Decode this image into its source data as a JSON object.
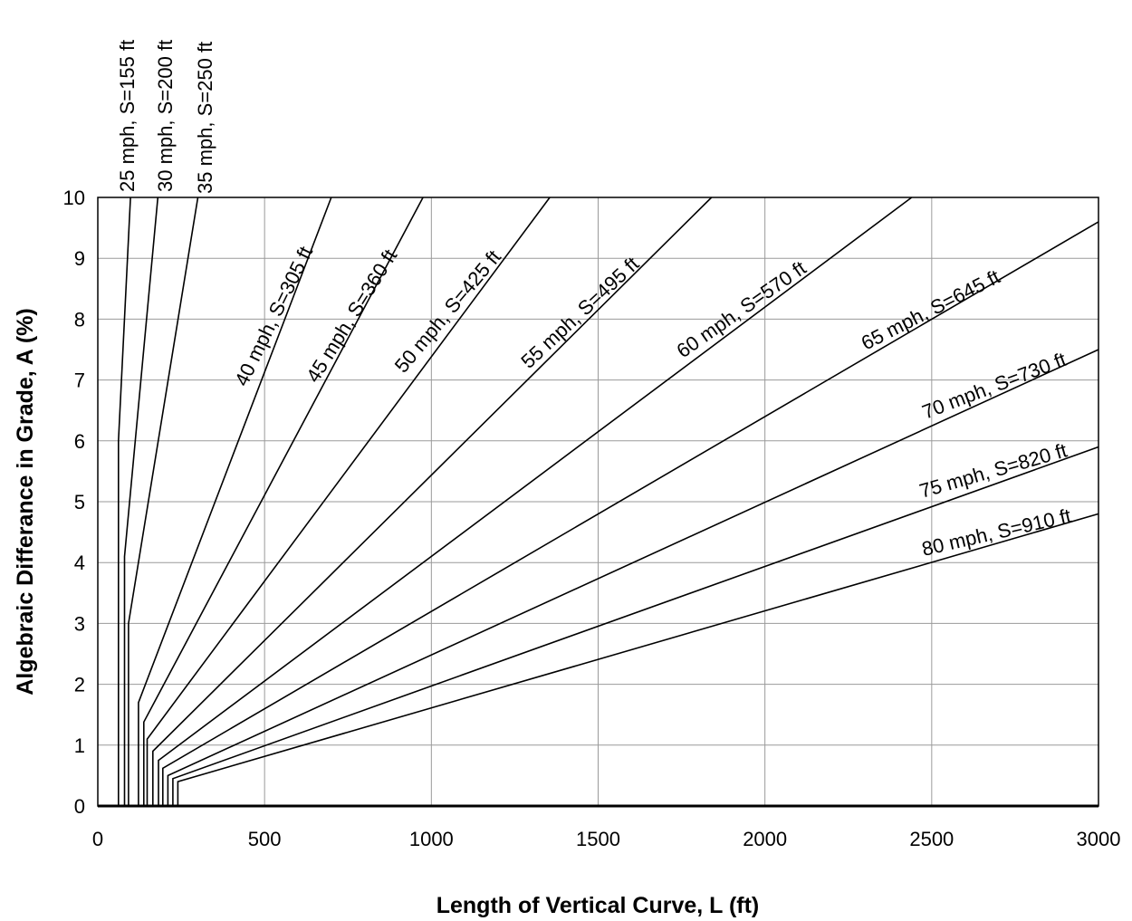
{
  "chart_data": {
    "type": "line",
    "xlabel": "Length of Vertical Curve, L (ft)",
    "ylabel": "Algebraic Differance in Grade, A (%)",
    "xlim": [
      0,
      3000
    ],
    "ylim": [
      0,
      10
    ],
    "x_ticks": [
      "0",
      "500",
      "1000",
      "1500",
      "2000",
      "2500",
      "3000"
    ],
    "y_ticks": [
      "0",
      "1",
      "2",
      "3",
      "4",
      "5",
      "6",
      "7",
      "8",
      "9",
      "10"
    ],
    "grid": true,
    "series": [
      {
        "name": "25 mph, S=155 ft",
        "points": [
          [
            62,
            0
          ],
          [
            62,
            6
          ],
          [
            98,
            10
          ]
        ]
      },
      {
        "name": "30 mph, S=200 ft",
        "points": [
          [
            80,
            0
          ],
          [
            80,
            4.1
          ],
          [
            180,
            10
          ]
        ]
      },
      {
        "name": "35 mph, S=250 ft",
        "points": [
          [
            92,
            0
          ],
          [
            92,
            3
          ],
          [
            300,
            10
          ]
        ]
      },
      {
        "name": "40 mph, S=305 ft",
        "points": [
          [
            122,
            0
          ],
          [
            122,
            1.7
          ],
          [
            700,
            10
          ]
        ]
      },
      {
        "name": "45 mph, S=360 ft",
        "points": [
          [
            138,
            0
          ],
          [
            138,
            1.38
          ],
          [
            975,
            10
          ]
        ]
      },
      {
        "name": "50 mph, S=425 ft",
        "points": [
          [
            148,
            0
          ],
          [
            148,
            1.1
          ],
          [
            1355,
            10
          ]
        ]
      },
      {
        "name": "55 mph, S=495 ft",
        "points": [
          [
            165,
            0
          ],
          [
            165,
            0.9
          ],
          [
            1840,
            10
          ]
        ]
      },
      {
        "name": "60 mph, S=570 ft",
        "points": [
          [
            182,
            0
          ],
          [
            182,
            0.75
          ],
          [
            2440,
            10
          ]
        ]
      },
      {
        "name": "65 mph, S=645 ft",
        "points": [
          [
            195,
            0
          ],
          [
            195,
            0.62
          ],
          [
            3000,
            9.6
          ]
        ]
      },
      {
        "name": "70 mph, S=730 ft",
        "points": [
          [
            210,
            0
          ],
          [
            210,
            0.5
          ],
          [
            3000,
            7.5
          ]
        ]
      },
      {
        "name": "75 mph, S=820 ft",
        "points": [
          [
            225,
            0
          ],
          [
            225,
            0.45
          ],
          [
            3000,
            5.9
          ]
        ]
      },
      {
        "name": "80 mph, S=910 ft",
        "points": [
          [
            240,
            0
          ],
          [
            240,
            0.4
          ],
          [
            3000,
            4.8
          ]
        ]
      }
    ]
  }
}
